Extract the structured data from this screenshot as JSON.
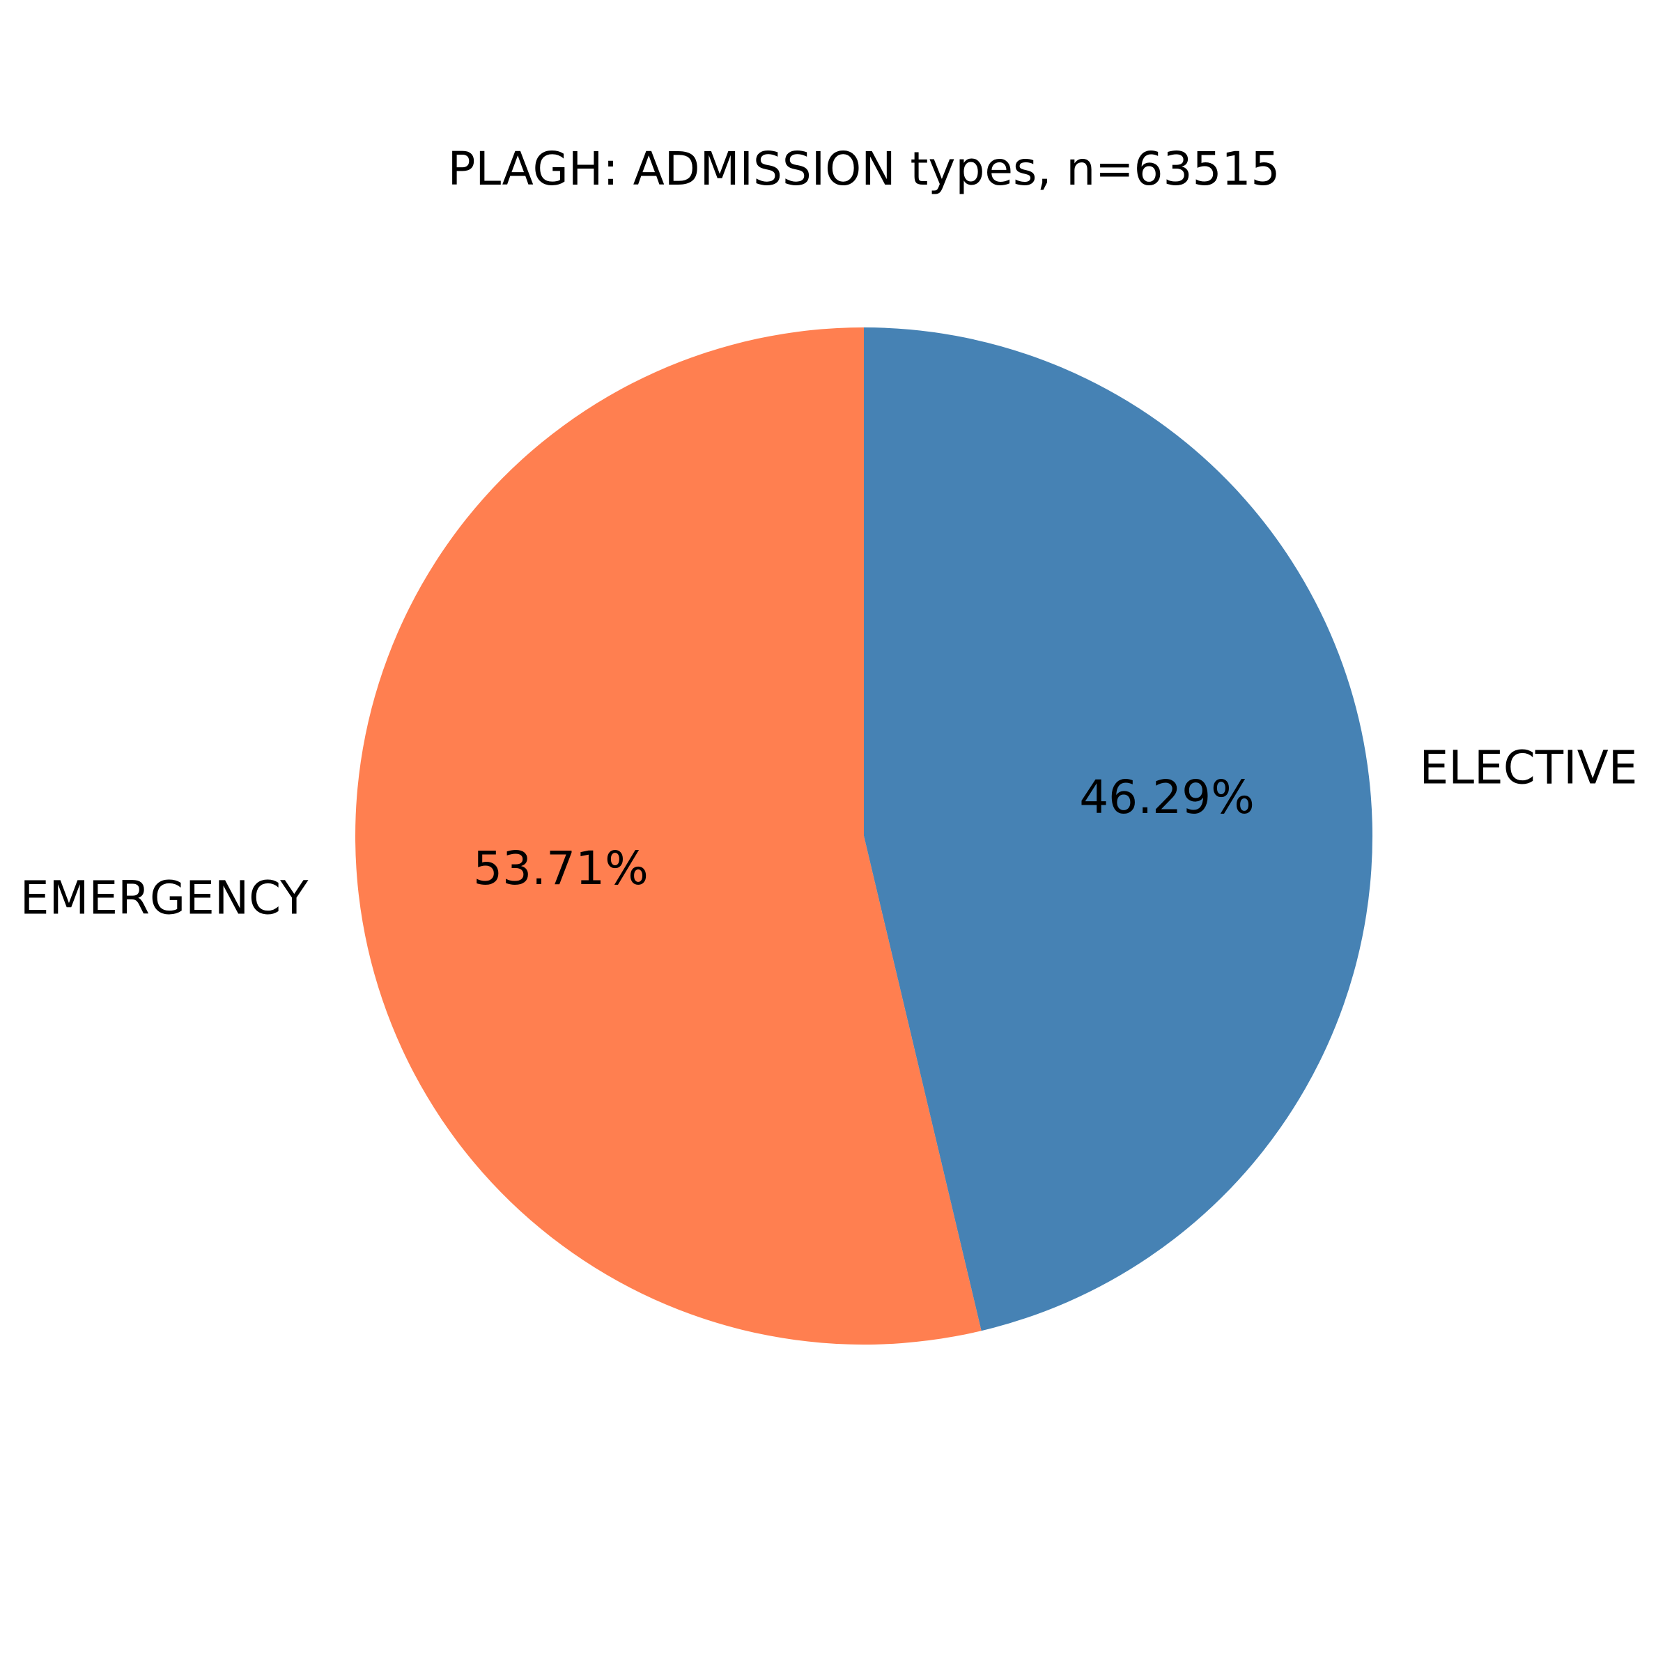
{
  "chart_data": {
    "type": "pie",
    "title": "PLAGH: ADMISSION types, n=63515",
    "slices": [
      {
        "label": "ELECTIVE",
        "value": 46.29,
        "pct_label": "46.29%",
        "color": "#4682B4"
      },
      {
        "label": "EMERGENCY",
        "value": 53.71,
        "pct_label": "53.71%",
        "color": "#FF7F50"
      }
    ],
    "start_angle_deg": 90,
    "direction": "clockwise"
  }
}
